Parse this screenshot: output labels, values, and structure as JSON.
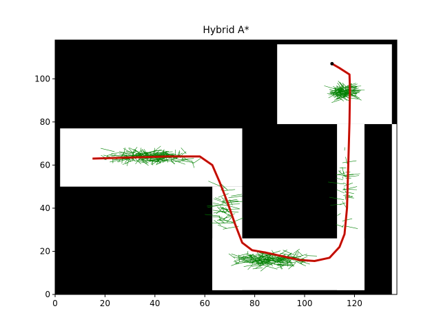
{
  "chart_data": {
    "type": "line",
    "title": "Hybrid A*",
    "xlabel": "",
    "ylabel": "",
    "xlim": [
      0,
      137
    ],
    "ylim": [
      0,
      118
    ],
    "x_ticks": [
      0,
      20,
      40,
      60,
      80,
      100,
      120
    ],
    "y_ticks": [
      0,
      20,
      40,
      60,
      80,
      100
    ],
    "grid": false,
    "legend": "none",
    "colors": {
      "obstacle": "#000000",
      "free_space": "#ffffff",
      "explored_edges": "#008000",
      "path": "#e00000",
      "path_overlay": "#8b2b00"
    },
    "free_space_regions": [
      {
        "name": "upper-left corridor",
        "x": [
          2,
          75
        ],
        "y": [
          50,
          77
        ]
      },
      {
        "name": "left lower leg",
        "x": [
          63,
          75
        ],
        "y": [
          2,
          50
        ]
      },
      {
        "name": "bottom corridor",
        "x": [
          63,
          124
        ],
        "y": [
          2,
          26
        ]
      },
      {
        "name": "right shaft",
        "x": [
          113,
          124
        ],
        "y": [
          2,
          79
        ]
      },
      {
        "name": "upper-right room",
        "x": [
          89,
          135
        ],
        "y": [
          79,
          116
        ]
      },
      {
        "name": "right edge strip",
        "x": [
          135,
          137
        ],
        "y": [
          0,
          79
        ]
      }
    ],
    "explored_clusters": [
      {
        "center": [
          38,
          64
        ],
        "spread": [
          22,
          3.5
        ],
        "count": 240
      },
      {
        "center": [
          86,
          16
        ],
        "spread": [
          20,
          4
        ],
        "count": 220
      },
      {
        "center": [
          116,
          94
        ],
        "spread": [
          5,
          4
        ],
        "count": 140
      },
      {
        "center": [
          68,
          40
        ],
        "spread": [
          4,
          14
        ],
        "count": 60
      },
      {
        "center": [
          116,
          50
        ],
        "spread": [
          2,
          25
        ],
        "count": 40
      }
    ],
    "series": [
      {
        "values_xy": [
          [
            15,
            63
          ],
          [
            30,
            63.5
          ],
          [
            45,
            64
          ],
          [
            58,
            64
          ],
          [
            63,
            60
          ],
          [
            66,
            52
          ],
          [
            69,
            43
          ],
          [
            72,
            33
          ],
          [
            75,
            24
          ],
          [
            79,
            20.5
          ],
          [
            84,
            19.5
          ],
          [
            90,
            18
          ],
          [
            98,
            16
          ],
          [
            104,
            15.5
          ],
          [
            110,
            17
          ],
          [
            114,
            22
          ],
          [
            116,
            28
          ],
          [
            117,
            40
          ],
          [
            117.5,
            60
          ],
          [
            118,
            80
          ],
          [
            118.2,
            95
          ],
          [
            118,
            102
          ],
          [
            114,
            105
          ],
          [
            111,
            107
          ]
        ]
      }
    ]
  }
}
